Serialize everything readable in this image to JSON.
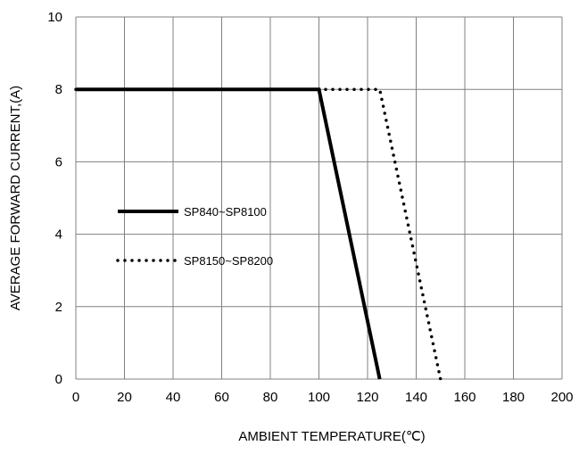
{
  "chart_data": {
    "type": "line",
    "xlabel": "AMBIENT TEMPERATURE(℃)",
    "ylabel": "AVERAGE FORWARD CURRENT,(A)",
    "xlim": [
      0,
      200
    ],
    "ylim": [
      0,
      10
    ],
    "x_ticks": [
      "0",
      "20",
      "40",
      "60",
      "80",
      "100",
      "120",
      "140",
      "160",
      "180",
      "200"
    ],
    "y_ticks": [
      "0",
      "2",
      "4",
      "6",
      "8",
      "10"
    ],
    "grid": true,
    "legend_position": "left",
    "series": [
      {
        "name": "SP840~SP8100",
        "style": "solid",
        "color": "#000000",
        "x": [
          0,
          100,
          125
        ],
        "y": [
          8,
          8,
          0
        ]
      },
      {
        "name": "SP8150~SP8200",
        "style": "dotted",
        "color": "#000000",
        "x": [
          0,
          125,
          150
        ],
        "y": [
          8,
          8,
          0
        ]
      }
    ]
  }
}
